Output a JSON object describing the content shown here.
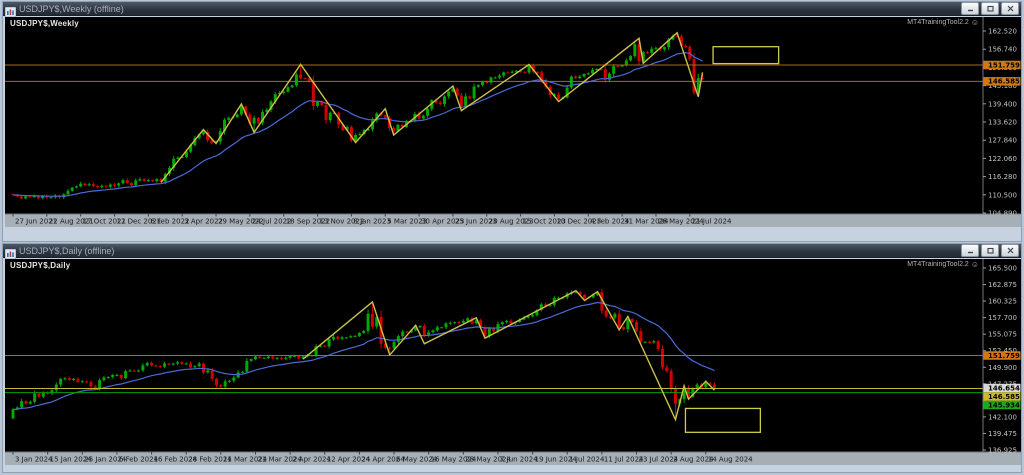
{
  "windows": [
    {
      "title": "USDJPY$,Weekly (offline)",
      "chart_label": "USDJPY$,Weekly",
      "watermark": "MT4TrainingTool2.2",
      "smiley": "☺"
    },
    {
      "title": "USDJPY$,Daily (offline)",
      "chart_label": "USDJPY$,Daily",
      "watermark": "MT4TrainingTool2.2",
      "smiley": "☺"
    }
  ],
  "colors": {
    "bull": "#00A800",
    "bear": "#D40000",
    "ma": "#4A6AD8",
    "zigzag": "#CDC14A",
    "rect": "#CFCB4A",
    "axis_text": "#C2C2C2",
    "date_text": "#1C1C1C",
    "date_strip": "#A6AEB6",
    "frame": "#C6D2E0",
    "divider": "#707880"
  },
  "chart_data": [
    {
      "type": "candlestick",
      "symbol": "USDJPY$",
      "timeframe": "Weekly",
      "title": "USDJPY$,Weekly",
      "y_ticks": [
        "162.520",
        "156.740",
        "150.960",
        "145.180",
        "139.400",
        "133.620",
        "127.840",
        "122.060",
        "116.280",
        "110.500",
        "104.890"
      ],
      "x_labels": [
        "27 Jun 2021",
        "22 Aug 2021",
        "17 Oct 2021",
        "12 Dec 2021",
        "6 Feb 2022",
        "3 Apr 2022",
        "29 May 2022",
        "24 Jul 2022",
        "18 Sep 2022",
        "13 Nov 2022",
        "8 Jan 2023",
        "5 Mar 2023",
        "30 Apr 2023",
        "25 Jun 2023",
        "20 Aug 2023",
        "15 Oct 2023",
        "10 Dec 2023",
        "4 Feb 2024",
        "31 Mar 2024",
        "26 May 2024",
        "21 Jul 2024"
      ],
      "label_step": 8,
      "first_open": 110.9,
      "closes": [
        110.6,
        110.1,
        109.5,
        110.2,
        109.9,
        110.3,
        109.6,
        110.2,
        109.8,
        109.9,
        110.4,
        109.9,
        110.8,
        111.9,
        112.9,
        113.3,
        114.2,
        113.7,
        114.0,
        113.4,
        113.1,
        113.5,
        113.2,
        113.9,
        113.6,
        114.3,
        115.3,
        114.4,
        113.7,
        115.2,
        115.6,
        115.1,
        115.3,
        115.0,
        115.6,
        114.8,
        117.3,
        119.2,
        122.0,
        122.5,
        122.6,
        124.3,
        126.4,
        128.6,
        129.8,
        130.5,
        127.9,
        127.1,
        127.5,
        130.8,
        134.4,
        135.0,
        135.2,
        136.1,
        138.6,
        136.1,
        133.2,
        135.0,
        133.5,
        136.9,
        137.6,
        140.2,
        142.5,
        142.9,
        143.3,
        144.7,
        145.3,
        148.7,
        147.6,
        147.4,
        146.6,
        138.8,
        140.1,
        139.1,
        134.3,
        136.6,
        136.6,
        132.9,
        131.1,
        132.1,
        127.9,
        129.6,
        129.9,
        131.2,
        131.4,
        134.2,
        136.4,
        135.9,
        135.0,
        131.8,
        130.7,
        132.8,
        132.1,
        133.7,
        134.1,
        136.3,
        134.8,
        135.7,
        137.9,
        140.6,
        139.9,
        139.4,
        141.8,
        143.3,
        144.3,
        142.1,
        138.8,
        141.8,
        141.2,
        144.9,
        145.4,
        146.4,
        146.2,
        147.8,
        147.8,
        148.4,
        149.4,
        149.3,
        149.6,
        149.9,
        149.6,
        149.4,
        151.5,
        149.6,
        149.4,
        146.8,
        144.9,
        142.2,
        142.4,
        141.0,
        141.5,
        144.6,
        148.1,
        147.6,
        148.1,
        148.9,
        149.1,
        150.2,
        150.5,
        150.4,
        147.1,
        149.0,
        151.4,
        151.3,
        151.6,
        153.2,
        154.6,
        158.3,
        153.0,
        155.8,
        155.6,
        156.9,
        157.2,
        156.7,
        157.4,
        159.8,
        160.9,
        160.8,
        157.8,
        157.5,
        153.7,
        143.0,
        147.6,
        147.3
      ],
      "wick_overrides": {
        "45": {
          "high": 131.35
        },
        "54": {
          "high": 139.4
        },
        "57": {
          "low": 130.4
        },
        "68": {
          "high": 151.95
        },
        "81": {
          "low": 127.2
        },
        "122": {
          "high": 151.9
        },
        "129": {
          "low": 140.2
        },
        "148": {
          "high": 160.2,
          "low": 151.8
        },
        "157": {
          "high": 161.95
        },
        "161": {
          "low": 142.3
        },
        "162": {
          "low": 141.68
        },
        "163": {
          "high": 149.4
        }
      },
      "zigzag": [
        [
          35,
          114.6
        ],
        [
          45,
          131.3
        ],
        [
          48,
          126.9
        ],
        [
          54,
          139.4
        ],
        [
          57,
          130.4
        ],
        [
          68,
          151.95
        ],
        [
          81,
          127.2
        ],
        [
          88,
          137.9
        ],
        [
          90,
          129.6
        ],
        [
          104,
          145.1
        ],
        [
          106,
          137.3
        ],
        [
          122,
          151.9
        ],
        [
          129,
          140.2
        ],
        [
          148,
          160.2
        ],
        [
          149,
          152.3
        ],
        [
          157,
          161.95
        ],
        [
          162,
          141.68
        ],
        [
          163,
          149.4
        ]
      ],
      "hlines": [
        {
          "price": 151.759,
          "label": "151.759",
          "line": "#A96B1D",
          "tag": "#D07818",
          "text": "#000000"
        },
        {
          "price": 146.585,
          "label": "146.585",
          "line": "#A96B1D",
          "tag": "#D07818",
          "text": "#000000"
        }
      ],
      "rects": [
        {
          "i1": 165.5,
          "i2": 181,
          "p1": 157.55,
          "p2": 152.2
        }
      ],
      "ma_period": 20
    },
    {
      "type": "candlestick",
      "symbol": "USDJPY$",
      "timeframe": "Daily",
      "title": "USDJPY$,Daily",
      "y_ticks": [
        "165.500",
        "162.875",
        "160.325",
        "157.700",
        "155.075",
        "152.450",
        "149.900",
        "147.275",
        "144.725",
        "142.100",
        "139.475",
        "136.925"
      ],
      "x_labels": [
        "3 Jan 2024",
        "15 Jan 2024",
        "25 Jan 2024",
        "6 Feb 2024",
        "16 Feb 2024",
        "28 Feb 2024",
        "11 Mar 2024",
        "21 Mar 2024",
        "2 Apr 2024",
        "12 Apr 2024",
        "24 Apr 2024",
        "6 May 2024",
        "16 May 2024",
        "28 May 2024",
        "7 Jun 2024",
        "19 Jun 2024",
        "1 Jul 2024",
        "11 Jul 2024",
        "23 Jul 2024",
        "2 Aug 2024",
        "14 Aug 2024"
      ],
      "label_step": 8,
      "first_open": 141.9,
      "closes": [
        143.3,
        143.6,
        144.6,
        144.2,
        144.5,
        145.8,
        145.3,
        145.9,
        145.8,
        146.3,
        147.2,
        148.1,
        148.2,
        147.9,
        148.1,
        147.6,
        147.7,
        147.6,
        146.9,
        146.6,
        147.9,
        148.3,
        148.4,
        148.7,
        148.7,
        148.2,
        149.3,
        149.4,
        149.3,
        149.4,
        150.2,
        150.6,
        150.2,
        150.1,
        150.0,
        150.5,
        150.4,
        150.5,
        150.7,
        150.4,
        150.5,
        149.9,
        150.1,
        150.5,
        149.1,
        149.4,
        148.1,
        147.1,
        146.9,
        147.7,
        147.8,
        148.3,
        149.1,
        149.2,
        150.9,
        151.2,
        151.6,
        151.4,
        151.4,
        151.6,
        151.3,
        151.4,
        151.3,
        151.4,
        151.7,
        151.7,
        151.3,
        151.6,
        151.8,
        151.8,
        153.2,
        153.3,
        153.2,
        154.3,
        154.7,
        154.4,
        154.6,
        154.6,
        154.8,
        154.8,
        155.3,
        155.6,
        158.3,
        156.3,
        157.8,
        153.6,
        153.0,
        152.9,
        153.9,
        154.8,
        155.5,
        155.4,
        155.7,
        156.2,
        156.4,
        154.9,
        155.4,
        155.7,
        156.2,
        156.2,
        156.8,
        156.9,
        157.0,
        156.9,
        157.2,
        157.6,
        156.8,
        157.3,
        156.1,
        154.8,
        156.1,
        155.6,
        156.7,
        157.0,
        157.2,
        156.8,
        157.0,
        157.4,
        157.7,
        157.9,
        158.1,
        158.9,
        159.8,
        159.6,
        159.7,
        160.8,
        160.8,
        160.9,
        161.5,
        161.7,
        161.7,
        161.3,
        160.8,
        160.9,
        161.3,
        161.7,
        158.8,
        157.9,
        157.7,
        158.3,
        156.2,
        155.9,
        157.5,
        157.0,
        155.6,
        153.9,
        153.9,
        153.8,
        154.0,
        152.8,
        149.9,
        149.3,
        146.5,
        144.2,
        144.9,
        146.7,
        145.3,
        146.6,
        147.2,
        146.8,
        147.4,
        147.2,
        146.6
      ],
      "wick_overrides": {
        "83": {
          "high": 160.17
        },
        "87": {
          "low": 151.85
        },
        "109": {
          "low": 154.5
        },
        "130": {
          "high": 161.95
        },
        "150": {
          "low": 149.6
        },
        "153": {
          "low": 141.68
        },
        "160": {
          "high": 147.9
        }
      },
      "zigzag": [
        [
          67,
          151.2
        ],
        [
          83,
          160.17
        ],
        [
          87,
          151.85
        ],
        [
          93,
          156.5
        ],
        [
          95,
          153.6
        ],
        [
          107,
          157.7
        ],
        [
          109,
          154.5
        ],
        [
          130,
          161.95
        ],
        [
          132,
          160.4
        ],
        [
          135,
          161.8
        ],
        [
          140,
          155.8
        ],
        [
          142,
          157.9
        ],
        [
          153,
          141.68
        ],
        [
          155,
          147.0
        ],
        [
          156,
          144.9
        ],
        [
          160,
          147.7
        ],
        [
          162,
          146.3
        ]
      ],
      "hlines": [
        {
          "price": 151.759,
          "label": "151.759",
          "line": "#A96B1D",
          "tag": "#D07818",
          "text": "#000000"
        },
        {
          "price": 146.654,
          "label": "146.654",
          "line": "none",
          "tag": "#D8D8D8",
          "text": "#000000"
        },
        {
          "price": 146.585,
          "label": "146.585",
          "line": "#BFB832",
          "tag": "#C7BB28",
          "text": "#000000"
        },
        {
          "price": 145.934,
          "label": "145.934",
          "line": "#00A000",
          "tag": "#1FA81F",
          "text": "#000000"
        }
      ],
      "rects": [
        {
          "i1": 155.3,
          "i2": 172.6,
          "p1": 143.45,
          "p2": 139.7
        }
      ],
      "ma_period": 20
    }
  ]
}
